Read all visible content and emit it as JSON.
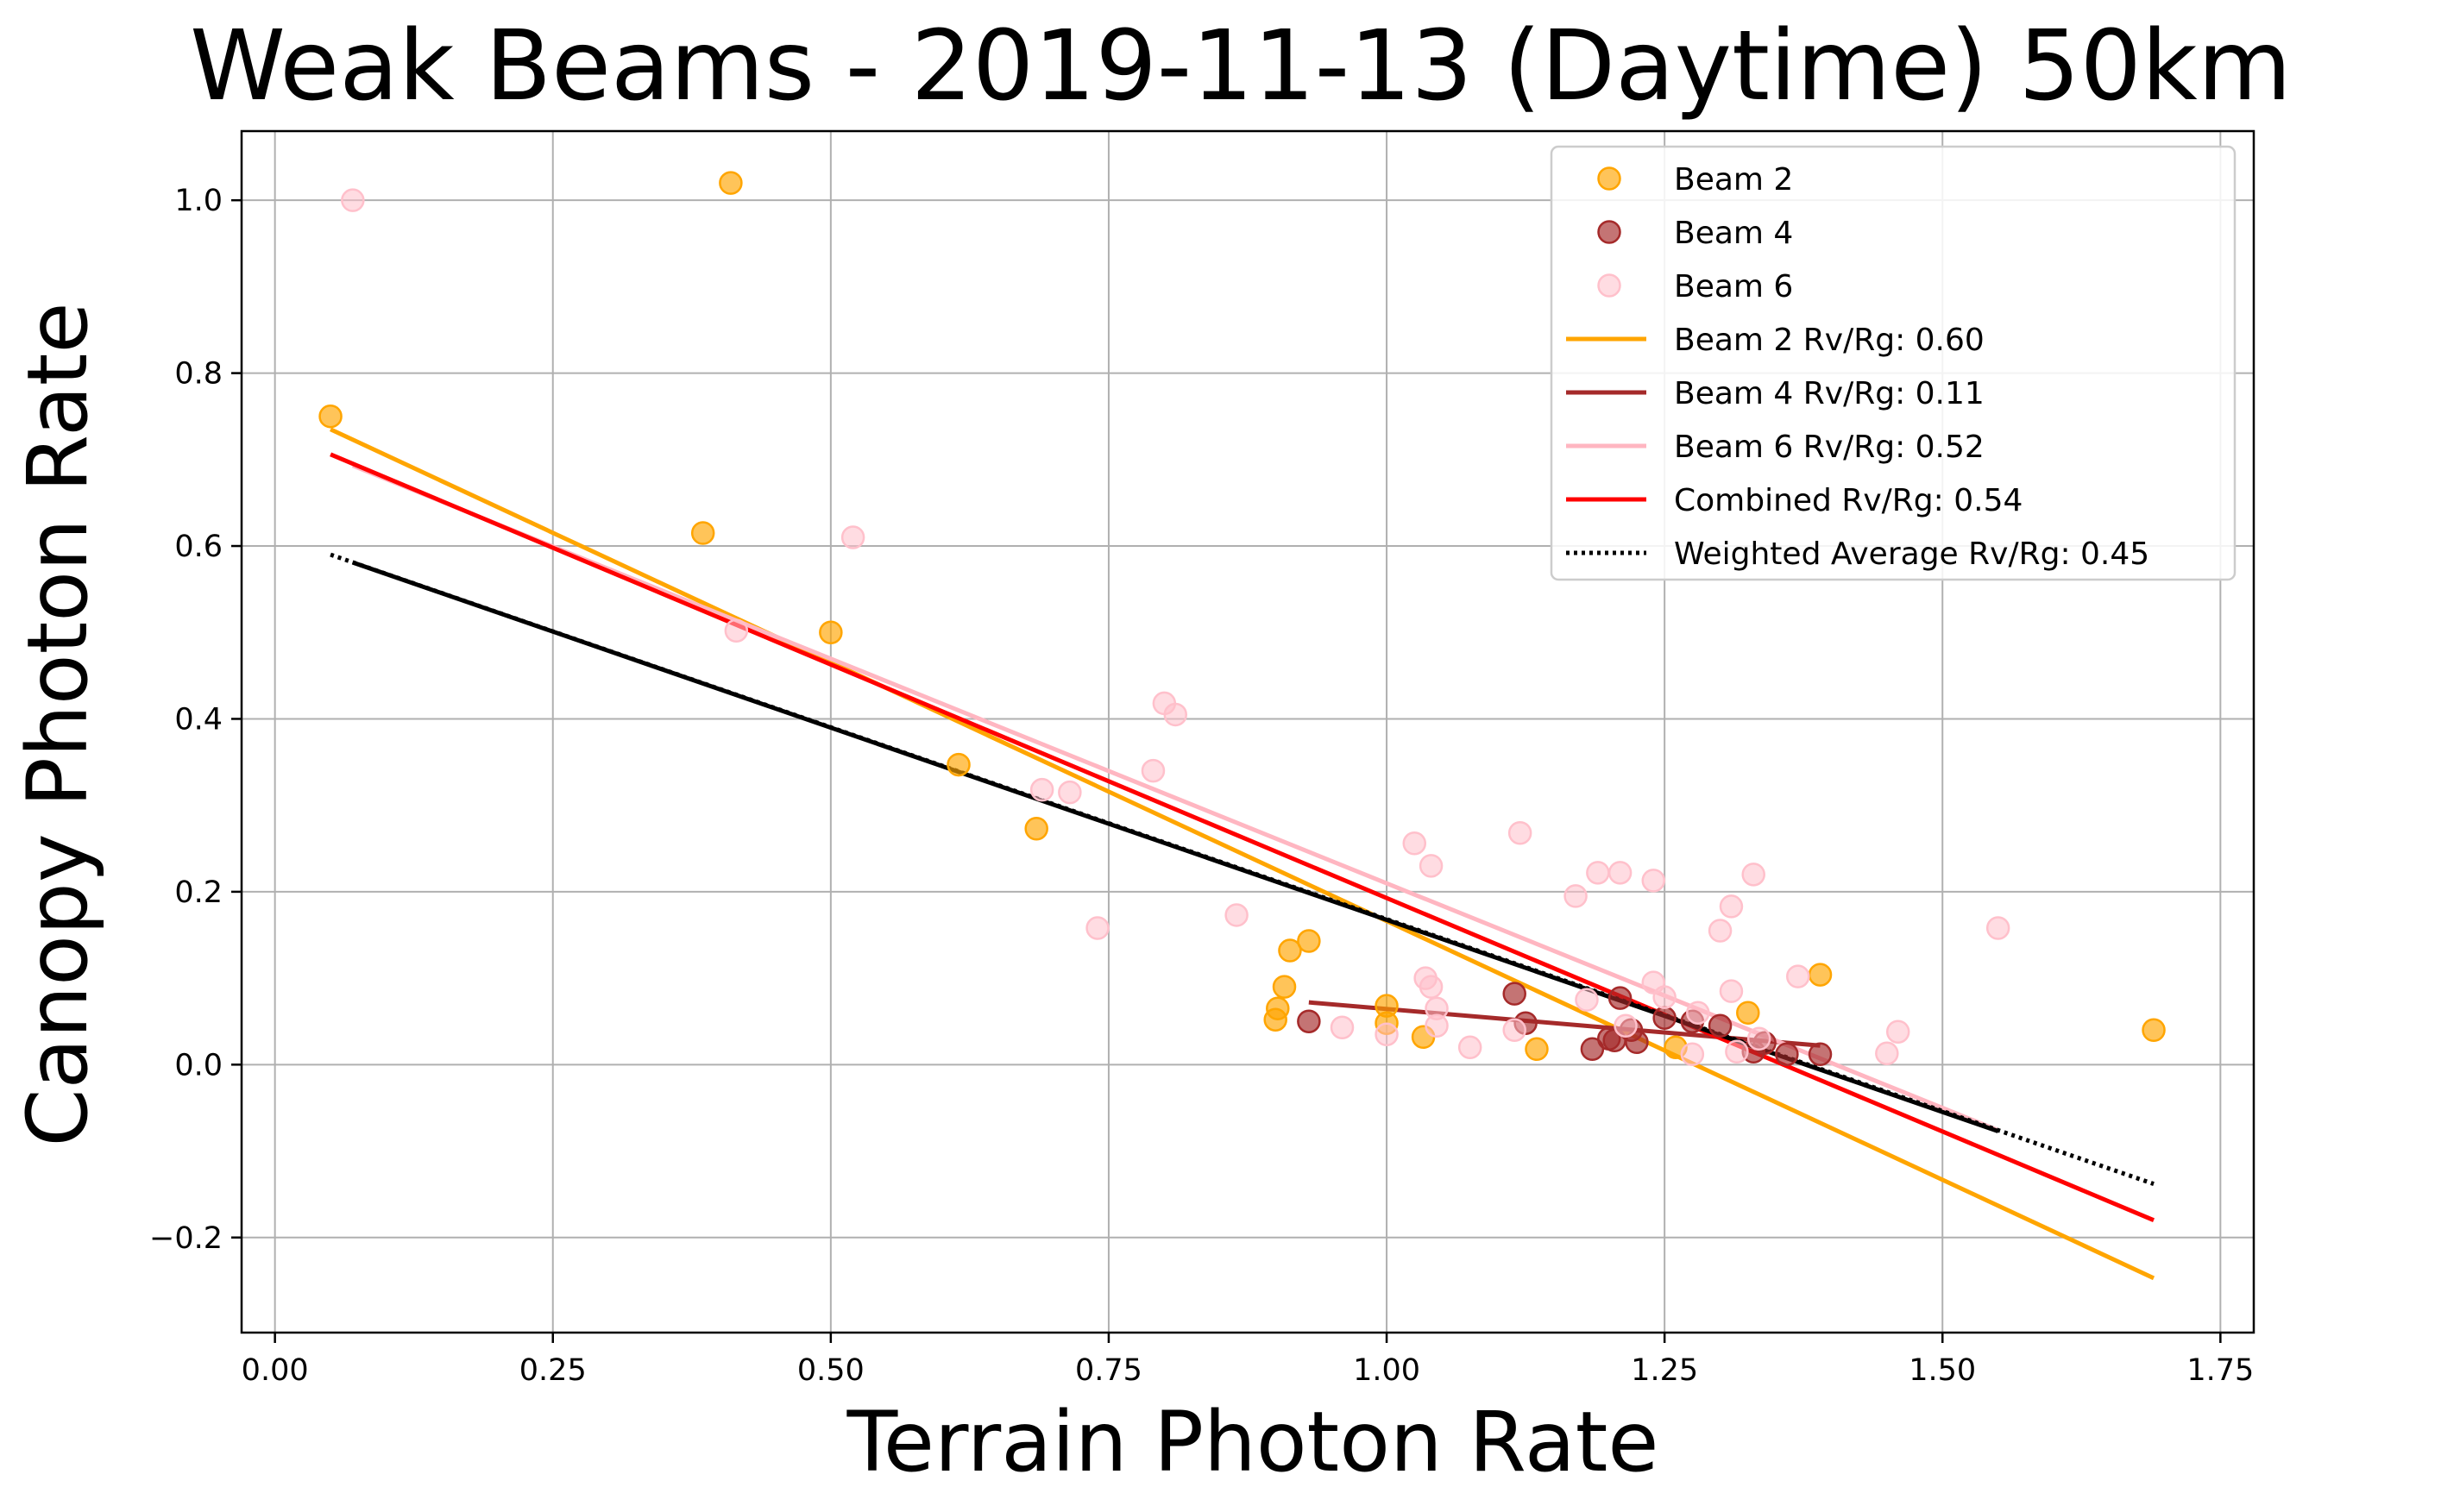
{
  "chart_data": {
    "type": "scatter",
    "title": "Weak Beams - 2019-11-13 (Daytime) 50km",
    "xlabel": "Terrain Photon Rate",
    "ylabel": "Canopy Photon Rate",
    "xlim": [
      -0.03,
      1.78
    ],
    "ylim": [
      -0.31,
      1.08
    ],
    "grid": true,
    "legend_position": "top-right",
    "x_ticks": [
      0.0,
      0.25,
      0.5,
      0.75,
      1.0,
      1.25,
      1.5,
      1.75
    ],
    "x_tick_labels": [
      "0.00",
      "0.25",
      "0.50",
      "0.75",
      "1.00",
      "1.25",
      "1.50",
      "1.75"
    ],
    "y_ticks": [
      -0.2,
      0.0,
      0.2,
      0.4,
      0.6,
      0.8,
      1.0
    ],
    "y_tick_labels": [
      "−0.2",
      "0.0",
      "0.2",
      "0.4",
      "0.6",
      "0.8",
      "1.0"
    ],
    "scatter_series": [
      {
        "name": "Beam 2",
        "color": "#ffa500",
        "points": [
          [
            0.05,
            0.75
          ],
          [
            0.41,
            1.02
          ],
          [
            0.385,
            0.615
          ],
          [
            0.5,
            0.5
          ],
          [
            0.615,
            0.347
          ],
          [
            0.685,
            0.273
          ],
          [
            0.9,
            0.052
          ],
          [
            0.902,
            0.065
          ],
          [
            0.908,
            0.09
          ],
          [
            0.913,
            0.132
          ],
          [
            0.93,
            0.143
          ],
          [
            1.0,
            0.068
          ],
          [
            1.0,
            0.048
          ],
          [
            1.033,
            0.032
          ],
          [
            1.135,
            0.018
          ],
          [
            1.26,
            0.02
          ],
          [
            1.325,
            0.06
          ],
          [
            1.39,
            0.104
          ],
          [
            1.69,
            0.04
          ]
        ]
      },
      {
        "name": "Beam 4",
        "color": "#a52a2a",
        "points": [
          [
            0.93,
            0.05
          ],
          [
            1.115,
            0.082
          ],
          [
            1.125,
            0.048
          ],
          [
            1.185,
            0.018
          ],
          [
            1.2,
            0.03
          ],
          [
            1.205,
            0.028
          ],
          [
            1.21,
            0.077
          ],
          [
            1.22,
            0.04
          ],
          [
            1.225,
            0.026
          ],
          [
            1.25,
            0.054
          ],
          [
            1.275,
            0.05
          ],
          [
            1.3,
            0.045
          ],
          [
            1.33,
            0.015
          ],
          [
            1.34,
            0.025
          ],
          [
            1.36,
            0.012
          ],
          [
            1.39,
            0.012
          ]
        ]
      },
      {
        "name": "Beam 6",
        "color": "#ffc0cb",
        "points": [
          [
            0.07,
            1.0
          ],
          [
            0.415,
            0.502
          ],
          [
            0.52,
            0.61
          ],
          [
            0.69,
            0.318
          ],
          [
            0.715,
            0.315
          ],
          [
            0.74,
            0.158
          ],
          [
            0.79,
            0.34
          ],
          [
            0.8,
            0.418
          ],
          [
            0.81,
            0.405
          ],
          [
            0.865,
            0.173
          ],
          [
            0.96,
            0.043
          ],
          [
            1.0,
            0.035
          ],
          [
            1.025,
            0.256
          ],
          [
            1.035,
            0.1
          ],
          [
            1.04,
            0.09
          ],
          [
            1.04,
            0.23
          ],
          [
            1.045,
            0.065
          ],
          [
            1.045,
            0.045
          ],
          [
            1.075,
            0.02
          ],
          [
            1.115,
            0.04
          ],
          [
            1.12,
            0.268
          ],
          [
            1.17,
            0.195
          ],
          [
            1.18,
            0.075
          ],
          [
            1.19,
            0.222
          ],
          [
            1.21,
            0.222
          ],
          [
            1.215,
            0.045
          ],
          [
            1.24,
            0.213
          ],
          [
            1.24,
            0.095
          ],
          [
            1.25,
            0.078
          ],
          [
            1.275,
            0.012
          ],
          [
            1.28,
            0.06
          ],
          [
            1.3,
            0.155
          ],
          [
            1.31,
            0.183
          ],
          [
            1.31,
            0.085
          ],
          [
            1.315,
            0.015
          ],
          [
            1.33,
            0.22
          ],
          [
            1.335,
            0.03
          ],
          [
            1.37,
            0.102
          ],
          [
            1.45,
            0.013
          ],
          [
            1.46,
            0.038
          ],
          [
            1.55,
            0.158
          ]
        ]
      }
    ],
    "line_series": [
      {
        "name": "Beam 2 Rv/Rg: 0.60",
        "color": "#ffa500",
        "style": "solid",
        "points": [
          [
            0.05,
            0.735
          ],
          [
            1.69,
            -0.247
          ]
        ]
      },
      {
        "name": "Beam 4 Rv/Rg: 0.11",
        "color": "#a52a2a",
        "style": "solid",
        "points": [
          [
            0.93,
            0.072
          ],
          [
            1.39,
            0.022
          ]
        ]
      },
      {
        "name": "Beam 6 Rv/Rg: 0.52",
        "color": "#ffb6c1",
        "style": "solid",
        "points": [
          [
            0.07,
            0.693
          ],
          [
            1.55,
            -0.076
          ]
        ]
      },
      {
        "name": "Combined Rv/Rg: 0.54",
        "color": "#ff0000",
        "style": "solid",
        "points": [
          [
            0.05,
            0.706
          ],
          [
            1.69,
            -0.18
          ]
        ]
      },
      {
        "name": "Weighted Average Rv/Rg: 0.45",
        "color": "#000000",
        "style": "dotted",
        "points": [
          [
            0.05,
            0.59
          ],
          [
            1.69,
            -0.138
          ]
        ]
      }
    ],
    "overlay_lines": [
      {
        "color": "#000000",
        "style": "solid",
        "points": [
          [
            0.07,
            0.581
          ],
          [
            1.55,
            -0.077
          ]
        ]
      }
    ]
  }
}
